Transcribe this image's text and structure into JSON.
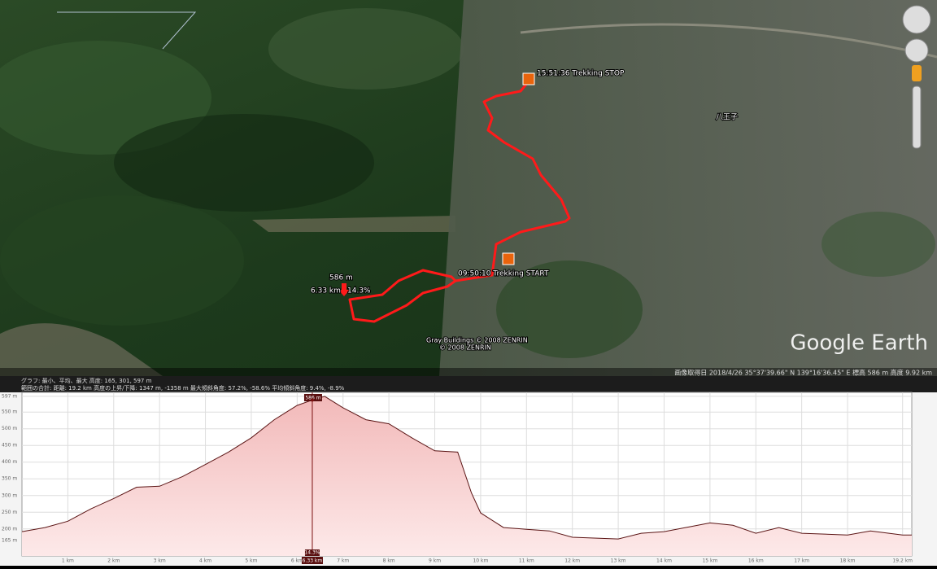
{
  "map": {
    "labels": {
      "stop": "15:51:36 Trekking STOP",
      "start": "09:50:10 Trekking START",
      "elevation": "586 m",
      "distance": "6.33 km",
      "grade": "14.3%",
      "city": "八王子",
      "copyright1": "Gray Buildings © 2008 ZENRIN",
      "copyright2": "© 2008 ZENRIN"
    },
    "logo": "Google Earth",
    "status": "画像取得日 2018/4/26   35°37'39.66\" N  139°16'36.45\" E  標高  586 m   高度  9.92 km"
  },
  "profile": {
    "summary1": "グラフ: 最小、平均、最大 高度: 165, 301, 597 m",
    "summary2": "範囲の合計: 距離: 19.2 km 高度の上昇/下降: 1347 m, -1358 m 最大傾斜角度: 57.2%, -58.6% 平均傾斜角度: 9.4%, -8.9%",
    "xlim": [
      0,
      19.4
    ],
    "ylim": [
      119,
      609
    ],
    "xticks": [
      {
        "value": 1,
        "label": "1 km"
      },
      {
        "value": 2,
        "label": "2 km"
      },
      {
        "value": 3,
        "label": "3 km"
      },
      {
        "value": 4,
        "label": "4 km"
      },
      {
        "value": 5,
        "label": "5 km"
      },
      {
        "value": 6,
        "label": "6 km"
      },
      {
        "value": 7,
        "label": "7 km"
      },
      {
        "value": 8,
        "label": "8 km"
      },
      {
        "value": 9,
        "label": "9 km"
      },
      {
        "value": 10,
        "label": "10 km"
      },
      {
        "value": 11,
        "label": "11 km"
      },
      {
        "value": 12,
        "label": "12 km"
      },
      {
        "value": 13,
        "label": "13 km"
      },
      {
        "value": 14,
        "label": "14 km"
      },
      {
        "value": 15,
        "label": "15 km"
      },
      {
        "value": 16,
        "label": "16 km"
      },
      {
        "value": 17,
        "label": "17 km"
      },
      {
        "value": 18,
        "label": "18 km"
      },
      {
        "value": 19.2,
        "label": "19.2 km"
      }
    ],
    "yticks": [
      {
        "value": 597,
        "label": "597 m"
      },
      {
        "value": 550,
        "label": "550 m"
      },
      {
        "value": 500,
        "label": "500 m"
      },
      {
        "value": 450,
        "label": "450 m"
      },
      {
        "value": 400,
        "label": "400 m"
      },
      {
        "value": 350,
        "label": "350 m"
      },
      {
        "value": 300,
        "label": "300 m"
      },
      {
        "value": 250,
        "label": "250 m"
      },
      {
        "value": 200,
        "label": "200 m"
      },
      {
        "value": 165,
        "label": "165 m"
      }
    ],
    "x": [
      0,
      0.5,
      1,
      1.5,
      2,
      2.5,
      3,
      3.5,
      4,
      4.5,
      5,
      5.5,
      6,
      6.33,
      6.6,
      7,
      7.5,
      8,
      8.5,
      9,
      9.5,
      9.8,
      10,
      10.5,
      11,
      11.5,
      12,
      13,
      13.5,
      14,
      15,
      15.5,
      16,
      16.5,
      17,
      18,
      18.5,
      19.2,
      19.4
    ],
    "values": [
      192,
      204,
      223,
      260,
      291,
      325,
      328,
      357,
      393,
      430,
      473,
      527,
      570,
      586,
      597,
      563,
      527,
      515,
      473,
      434,
      430,
      308,
      248,
      204,
      199,
      194,
      175,
      170,
      187,
      192,
      218,
      211,
      187,
      204,
      187,
      182,
      194,
      182,
      182
    ],
    "cursor": {
      "x": {
        "value": 6.33,
        "label": "6.33 km"
      },
      "y": {
        "value": 586,
        "label": "586 m"
      },
      "grade": "14.3%"
    }
  }
}
